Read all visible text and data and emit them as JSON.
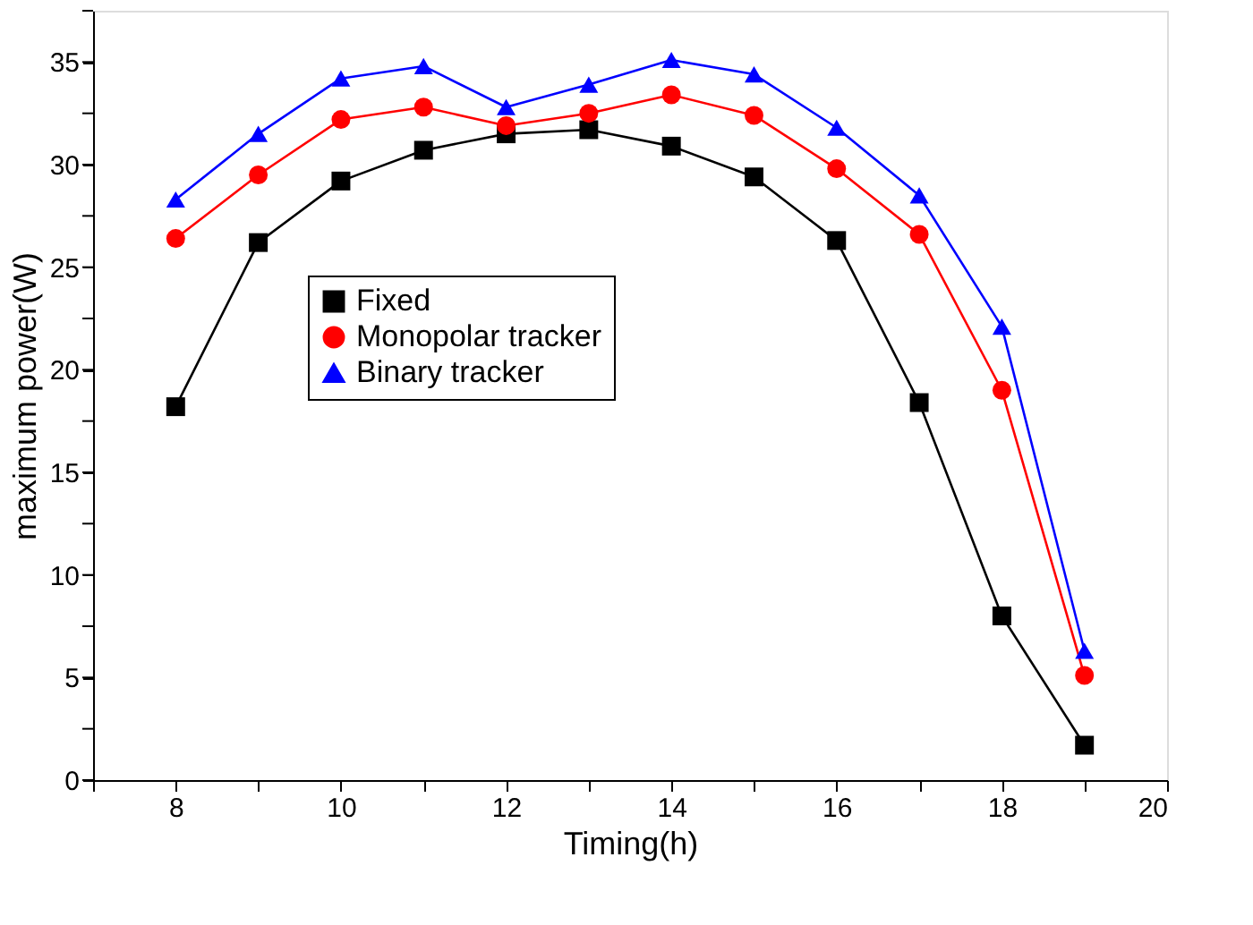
{
  "chart_data": {
    "type": "line",
    "xlabel": "Timing(h)",
    "ylabel": "maximum power(W)",
    "x": [
      8,
      9,
      10,
      11,
      12,
      13,
      14,
      15,
      16,
      17,
      18,
      19
    ],
    "series": [
      {
        "name": "Fixed",
        "color": "#000000",
        "marker": "square",
        "values": [
          18.2,
          26.2,
          29.2,
          30.7,
          31.5,
          31.7,
          30.9,
          29.4,
          26.3,
          18.4,
          8.0,
          1.7
        ]
      },
      {
        "name": "Monopolar tracker",
        "color": "#ff0000",
        "marker": "circle",
        "values": [
          26.4,
          29.5,
          32.2,
          32.8,
          31.9,
          32.5,
          33.4,
          32.4,
          29.8,
          26.6,
          19.0,
          5.1
        ]
      },
      {
        "name": "Binary tracker",
        "color": "#0000ff",
        "marker": "triangle",
        "values": [
          28.3,
          31.5,
          34.2,
          34.8,
          32.8,
          33.9,
          35.1,
          34.4,
          31.8,
          28.5,
          22.1,
          6.3
        ]
      }
    ],
    "xlim": [
      7,
      20
    ],
    "xticks": [
      {
        "value": 7,
        "label": null
      },
      8,
      {
        "value": 9,
        "label": null
      },
      10,
      {
        "value": 11,
        "label": null
      },
      12,
      {
        "value": 13,
        "label": null
      },
      14,
      {
        "value": 15,
        "label": null
      },
      16,
      {
        "value": 17,
        "label": null
      },
      18,
      {
        "value": 19,
        "label": null
      },
      20
    ],
    "ylim": [
      0,
      37.5
    ],
    "yticks": [
      0,
      {
        "value": 2.5,
        "label": null
      },
      5,
      {
        "value": 7.5,
        "label": null
      },
      10,
      {
        "value": 12.5,
        "label": null
      },
      15,
      {
        "value": 17.5,
        "label": null
      },
      20,
      {
        "value": 22.5,
        "label": null
      },
      25,
      {
        "value": 27.5,
        "label": null
      },
      30,
      {
        "value": 32.5,
        "label": null
      },
      35,
      {
        "value": 37.5,
        "label": null
      }
    ],
    "grid": false,
    "legend": "top left",
    "line_style": "solid"
  }
}
